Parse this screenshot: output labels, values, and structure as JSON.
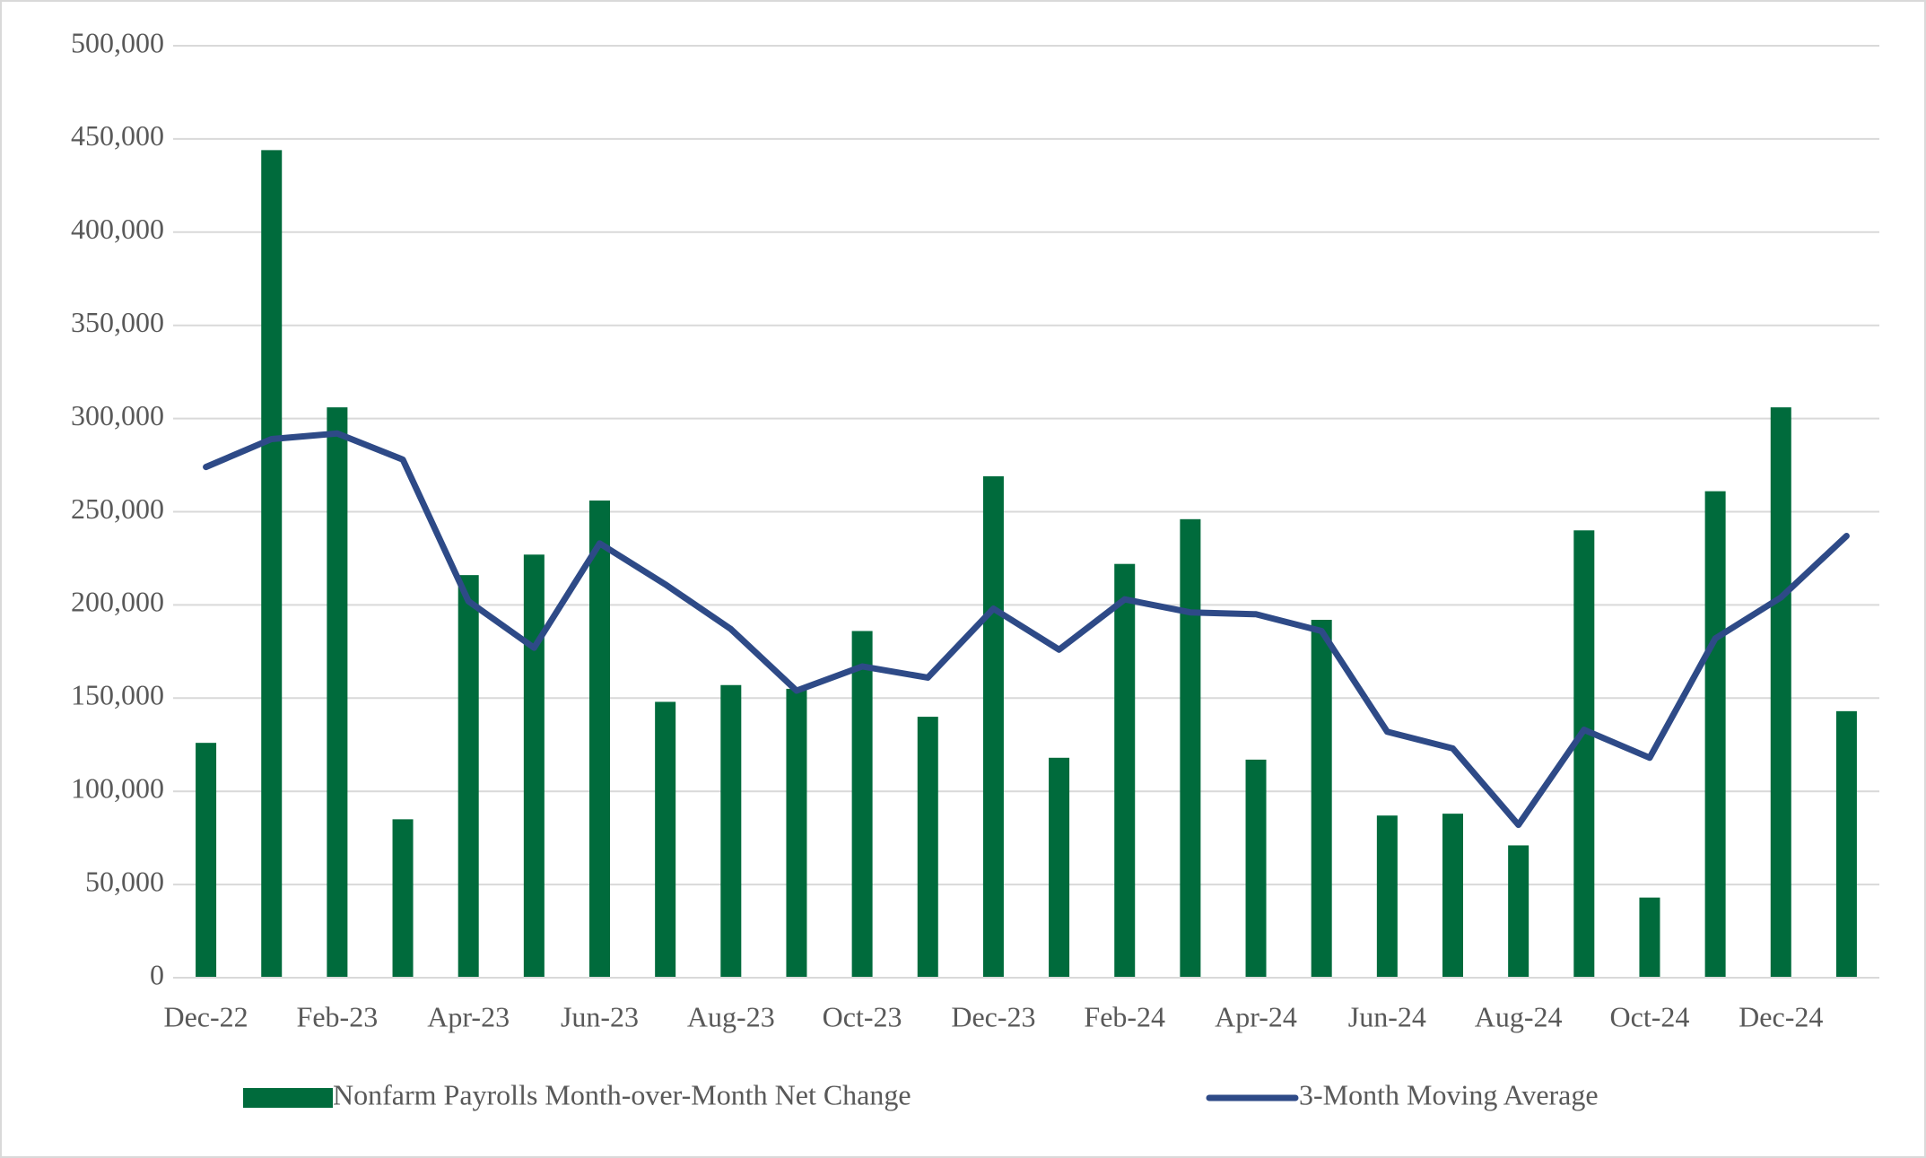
{
  "chart_data": {
    "type": "bar-line",
    "categories": [
      "Dec-22",
      null,
      "Feb-23",
      null,
      "Apr-23",
      null,
      "Jun-23",
      null,
      "Aug-23",
      null,
      "Oct-23",
      null,
      "Dec-23",
      null,
      "Feb-24",
      null,
      "Apr-24",
      null,
      "Jun-24",
      null,
      "Aug-24",
      null,
      "Oct-24",
      null,
      "Dec-24",
      null
    ],
    "series": [
      {
        "name": "Nonfarm Payrolls Month-over-Month Net Change",
        "type": "bar",
        "color": "#006b3c",
        "values": [
          126000,
          444000,
          306000,
          85000,
          216000,
          227000,
          256000,
          148000,
          157000,
          155000,
          186000,
          140000,
          269000,
          118000,
          222000,
          246000,
          117000,
          192000,
          87000,
          88000,
          71000,
          240000,
          43000,
          261000,
          306000,
          143000
        ]
      },
      {
        "name": "3-Month Moving Average",
        "type": "line",
        "color": "#2e4a87",
        "values": [
          274000,
          289000,
          292000,
          278000,
          202000,
          177000,
          233000,
          211000,
          187000,
          154000,
          167000,
          161000,
          198000,
          176000,
          203000,
          196000,
          195000,
          186000,
          132000,
          123000,
          82000,
          133000,
          118000,
          182000,
          204000,
          237000
        ]
      }
    ],
    "ylim": [
      0,
      500000
    ],
    "yticks": [
      0,
      {
        "value": 50000,
        "label": "50,000"
      },
      {
        "value": 100000,
        "label": "100,000"
      },
      {
        "value": 150000,
        "label": "150,000"
      },
      {
        "value": 200000,
        "label": "200,000"
      },
      {
        "value": 250000,
        "label": "250,000"
      },
      {
        "value": 300000,
        "label": "300,000"
      },
      {
        "value": 350000,
        "label": "350,000"
      },
      {
        "value": 400000,
        "label": "400,000"
      },
      {
        "value": 450000,
        "label": "450,000"
      },
      {
        "value": 500000,
        "label": "500,000"
      }
    ],
    "grid": true,
    "legend": "bottom"
  }
}
